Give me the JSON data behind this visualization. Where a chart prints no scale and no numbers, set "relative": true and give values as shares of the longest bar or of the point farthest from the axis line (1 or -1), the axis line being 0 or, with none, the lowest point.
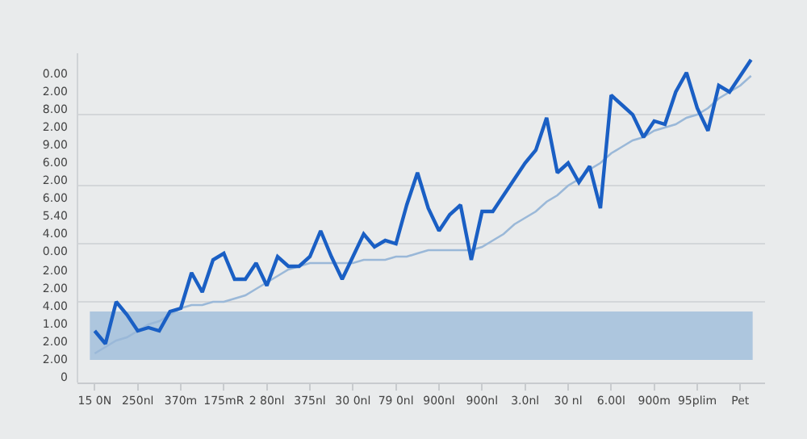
{
  "chart_data": {
    "type": "line",
    "relative": true,
    "categories": [
      "15 0N",
      null,
      null,
      null,
      "250nl",
      null,
      null,
      null,
      "370m",
      null,
      null,
      null,
      "175mR",
      null,
      null,
      null,
      "2 80nl",
      null,
      null,
      null,
      "375nl",
      null,
      null,
      null,
      "30 0nl",
      null,
      null,
      null,
      "79 0nl",
      null,
      null,
      null,
      "900nl",
      null,
      null,
      null,
      "900nl",
      null,
      null,
      null,
      "3.0nl",
      null,
      null,
      null,
      "30 nl",
      null,
      null,
      null,
      "6.00l",
      null,
      null,
      null,
      "900m",
      null,
      null,
      null,
      "95plim",
      null,
      null,
      null,
      "Pet",
      null
    ],
    "annotations": [
      "0.00",
      "2.00",
      "8.00",
      "2.00",
      "9.00",
      "6.00",
      "2.00",
      "6.00",
      "5.40",
      "4.00",
      "0.00",
      "2.00",
      "2.00",
      "4.00",
      "1.00",
      "2.00",
      "2.00",
      "0"
    ],
    "bands": [
      {
        "axis": "y",
        "from": 0.07,
        "to": 0.22,
        "color": "#adc6de"
      }
    ],
    "ref_lines": [
      {
        "axis": "y",
        "value": 0.25,
        "color": "#d3d6d9"
      },
      {
        "axis": "y",
        "value": 0.43,
        "color": "#d3d6d9"
      },
      {
        "axis": "y",
        "value": 0.61,
        "color": "#d3d6d9"
      },
      {
        "axis": "y",
        "value": 0.83,
        "color": "#d3d6d9"
      }
    ],
    "series": [
      {
        "color": "#9ab8d8",
        "values": [
          0.09,
          0.11,
          0.13,
          0.14,
          0.16,
          0.18,
          0.19,
          0.21,
          0.23,
          0.24,
          0.24,
          0.25,
          0.25,
          0.26,
          0.27,
          0.29,
          0.31,
          0.33,
          0.35,
          0.36,
          0.37,
          0.37,
          0.37,
          0.37,
          0.37,
          0.38,
          0.38,
          0.38,
          0.39,
          0.39,
          0.4,
          0.41,
          0.41,
          0.41,
          0.41,
          0.41,
          0.42,
          0.44,
          0.46,
          0.49,
          0.51,
          0.53,
          0.56,
          0.58,
          0.61,
          0.63,
          0.66,
          0.68,
          0.71,
          0.73,
          0.75,
          0.76,
          0.78,
          0.79,
          0.8,
          0.82,
          0.83,
          0.85,
          0.88,
          0.9,
          0.92,
          0.95
        ]
      },
      {
        "color": "#1a5fc4",
        "values": [
          0.16,
          0.12,
          0.25,
          0.21,
          0.16,
          0.17,
          0.16,
          0.22,
          0.23,
          0.34,
          0.28,
          0.38,
          0.4,
          0.32,
          0.32,
          0.37,
          0.3,
          0.39,
          0.36,
          0.36,
          0.39,
          0.47,
          0.39,
          0.32,
          0.39,
          0.46,
          0.42,
          0.44,
          0.43,
          0.55,
          0.65,
          0.54,
          0.47,
          0.52,
          0.55,
          0.38,
          0.53,
          0.53,
          0.58,
          0.63,
          0.68,
          0.72,
          0.82,
          0.65,
          0.68,
          0.62,
          0.67,
          0.54,
          0.89,
          0.86,
          0.83,
          0.76,
          0.81,
          0.8,
          0.9,
          0.96,
          0.85,
          0.78,
          0.92,
          0.9,
          0.95,
          1
        ]
      }
    ]
  }
}
